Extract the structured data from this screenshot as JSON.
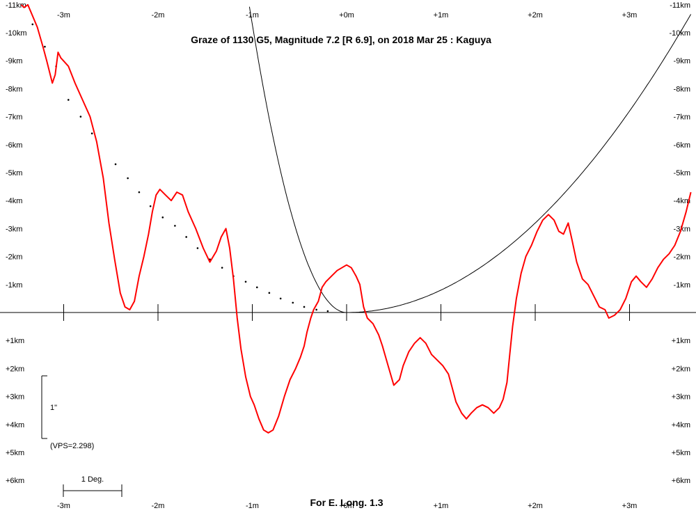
{
  "chart_data": {
    "type": "line",
    "title": "Graze of  1130 G5,  Magnitude 7.2 [R 6.9],  on 2018 Mar 25  :  Kaguya",
    "footer": "For E. Long. 1.3",
    "x_unit": "minutes",
    "y_unit": "km",
    "xlim": [
      -3.45,
      3.65
    ],
    "ylim": [
      -11,
      7
    ],
    "x_ticks": [
      -3,
      -2,
      -1,
      0,
      1,
      2,
      3
    ],
    "x_tick_labels": [
      "-3m",
      "-2m",
      "-1m",
      "+0m",
      "+1m",
      "+2m",
      "+3m"
    ],
    "y_ticks_above": [
      -11,
      -10,
      -9,
      -8,
      -7,
      -6,
      -5,
      -4,
      -3,
      -2,
      -1
    ],
    "y_tick_labels_above": [
      "-11km",
      "-10km",
      "-9km",
      "-8km",
      "-7km",
      "-6km",
      "-5km",
      "-4km",
      "-3km",
      "-2km",
      "-1km"
    ],
    "y_ticks_below": [
      1,
      2,
      3,
      4,
      5,
      6
    ],
    "y_tick_labels_below": [
      "+1km",
      "+2km",
      "+3km",
      "+4km",
      "+5km",
      "+6km"
    ],
    "scale_bar": {
      "label": "1\"",
      "vps_label": "(VPS=2.298)"
    },
    "degree_bar": {
      "label": "1 Deg.",
      "length_minutes": 0.6
    },
    "limb_profile": {
      "name": "lunar limb profile",
      "color": "#ff0000",
      "points": [
        [
          -3.45,
          -11.0
        ],
        [
          -3.42,
          -10.9
        ],
        [
          -3.38,
          -11.0
        ],
        [
          -3.33,
          -10.6
        ],
        [
          -3.28,
          -10.2
        ],
        [
          -3.22,
          -9.5
        ],
        [
          -3.18,
          -9.0
        ],
        [
          -3.12,
          -8.2
        ],
        [
          -3.09,
          -8.5
        ],
        [
          -3.06,
          -9.3
        ],
        [
          -3.03,
          -9.1
        ],
        [
          -2.95,
          -8.8
        ],
        [
          -2.88,
          -8.2
        ],
        [
          -2.8,
          -7.6
        ],
        [
          -2.72,
          -7.0
        ],
        [
          -2.65,
          -6.1
        ],
        [
          -2.58,
          -4.8
        ],
        [
          -2.52,
          -3.2
        ],
        [
          -2.46,
          -1.9
        ],
        [
          -2.4,
          -0.7
        ],
        [
          -2.35,
          -0.2
        ],
        [
          -2.3,
          -0.1
        ],
        [
          -2.25,
          -0.4
        ],
        [
          -2.2,
          -1.3
        ],
        [
          -2.15,
          -2.0
        ],
        [
          -2.1,
          -2.8
        ],
        [
          -2.06,
          -3.6
        ],
        [
          -2.02,
          -4.2
        ],
        [
          -1.98,
          -4.4
        ],
        [
          -1.92,
          -4.2
        ],
        [
          -1.86,
          -4.0
        ],
        [
          -1.8,
          -4.3
        ],
        [
          -1.74,
          -4.2
        ],
        [
          -1.68,
          -3.6
        ],
        [
          -1.6,
          -3.0
        ],
        [
          -1.52,
          -2.3
        ],
        [
          -1.45,
          -1.8
        ],
        [
          -1.38,
          -2.2
        ],
        [
          -1.33,
          -2.7
        ],
        [
          -1.28,
          -3.0
        ],
        [
          -1.24,
          -2.3
        ],
        [
          -1.2,
          -1.2
        ],
        [
          -1.16,
          0.2
        ],
        [
          -1.12,
          1.3
        ],
        [
          -1.07,
          2.3
        ],
        [
          -1.02,
          3.0
        ],
        [
          -0.98,
          3.3
        ],
        [
          -0.93,
          3.8
        ],
        [
          -0.88,
          4.2
        ],
        [
          -0.83,
          4.3
        ],
        [
          -0.78,
          4.2
        ],
        [
          -0.72,
          3.7
        ],
        [
          -0.66,
          3.0
        ],
        [
          -0.6,
          2.4
        ],
        [
          -0.54,
          2.0
        ],
        [
          -0.49,
          1.6
        ],
        [
          -0.45,
          1.2
        ],
        [
          -0.42,
          0.7
        ],
        [
          -0.38,
          0.2
        ],
        [
          -0.35,
          -0.1
        ],
        [
          -0.3,
          -0.4
        ],
        [
          -0.26,
          -0.9
        ],
        [
          -0.22,
          -1.1
        ],
        [
          -0.16,
          -1.3
        ],
        [
          -0.1,
          -1.5
        ],
        [
          -0.05,
          -1.6
        ],
        [
          0.0,
          -1.7
        ],
        [
          0.05,
          -1.6
        ],
        [
          0.1,
          -1.3
        ],
        [
          0.14,
          -1.0
        ],
        [
          0.18,
          -0.2
        ],
        [
          0.22,
          0.2
        ],
        [
          0.28,
          0.4
        ],
        [
          0.34,
          0.8
        ],
        [
          0.38,
          1.2
        ],
        [
          0.44,
          1.9
        ],
        [
          0.5,
          2.6
        ],
        [
          0.56,
          2.4
        ],
        [
          0.6,
          1.9
        ],
        [
          0.66,
          1.4
        ],
        [
          0.72,
          1.1
        ],
        [
          0.78,
          0.9
        ],
        [
          0.84,
          1.1
        ],
        [
          0.9,
          1.5
        ],
        [
          0.96,
          1.7
        ],
        [
          1.02,
          1.9
        ],
        [
          1.08,
          2.2
        ],
        [
          1.12,
          2.7
        ],
        [
          1.16,
          3.2
        ],
        [
          1.22,
          3.6
        ],
        [
          1.27,
          3.8
        ],
        [
          1.32,
          3.6
        ],
        [
          1.38,
          3.4
        ],
        [
          1.44,
          3.3
        ],
        [
          1.5,
          3.4
        ],
        [
          1.56,
          3.6
        ],
        [
          1.62,
          3.4
        ],
        [
          1.66,
          3.1
        ],
        [
          1.7,
          2.5
        ],
        [
          1.73,
          1.5
        ],
        [
          1.76,
          0.5
        ],
        [
          1.8,
          -0.5
        ],
        [
          1.85,
          -1.4
        ],
        [
          1.9,
          -2.0
        ],
        [
          1.96,
          -2.4
        ],
        [
          2.02,
          -2.9
        ],
        [
          2.08,
          -3.3
        ],
        [
          2.14,
          -3.5
        ],
        [
          2.2,
          -3.3
        ],
        [
          2.25,
          -2.9
        ],
        [
          2.3,
          -2.8
        ],
        [
          2.35,
          -3.2
        ],
        [
          2.39,
          -2.6
        ],
        [
          2.44,
          -1.8
        ],
        [
          2.5,
          -1.2
        ],
        [
          2.56,
          -1.0
        ],
        [
          2.62,
          -0.6
        ],
        [
          2.68,
          -0.2
        ],
        [
          2.74,
          -0.1
        ],
        [
          2.78,
          0.2
        ],
        [
          2.84,
          0.1
        ],
        [
          2.9,
          -0.1
        ],
        [
          2.96,
          -0.5
        ],
        [
          3.02,
          -1.1
        ],
        [
          3.07,
          -1.3
        ],
        [
          3.12,
          -1.1
        ],
        [
          3.18,
          -0.9
        ],
        [
          3.24,
          -1.2
        ],
        [
          3.3,
          -1.6
        ],
        [
          3.36,
          -1.9
        ],
        [
          3.42,
          -2.1
        ],
        [
          3.48,
          -2.4
        ],
        [
          3.54,
          -2.9
        ],
        [
          3.6,
          -3.6
        ],
        [
          3.65,
          -4.3
        ]
      ]
    },
    "dotted_profile": {
      "name": "dotted reference",
      "points": [
        [
          -3.33,
          -10.3
        ],
        [
          -3.2,
          -9.5
        ],
        [
          -3.08,
          -8.8
        ],
        [
          -2.95,
          -7.6
        ],
        [
          -2.82,
          -7.0
        ],
        [
          -2.7,
          -6.4
        ],
        [
          -2.45,
          -5.3
        ],
        [
          -2.32,
          -4.8
        ],
        [
          -2.2,
          -4.3
        ],
        [
          -2.08,
          -3.8
        ],
        [
          -1.95,
          -3.4
        ],
        [
          -1.82,
          -3.1
        ],
        [
          -1.7,
          -2.7
        ],
        [
          -1.58,
          -2.3
        ],
        [
          -1.45,
          -1.9
        ],
        [
          -1.32,
          -1.6
        ],
        [
          -1.2,
          -1.3
        ],
        [
          -1.07,
          -1.1
        ],
        [
          -0.95,
          -0.9
        ],
        [
          -0.82,
          -0.7
        ],
        [
          -0.7,
          -0.5
        ],
        [
          -0.57,
          -0.35
        ],
        [
          -0.45,
          -0.2
        ],
        [
          -0.32,
          -0.1
        ],
        [
          -0.2,
          -0.05
        ]
      ]
    },
    "path_curve": {
      "name": "graze path curve",
      "color": "#000000"
    }
  }
}
